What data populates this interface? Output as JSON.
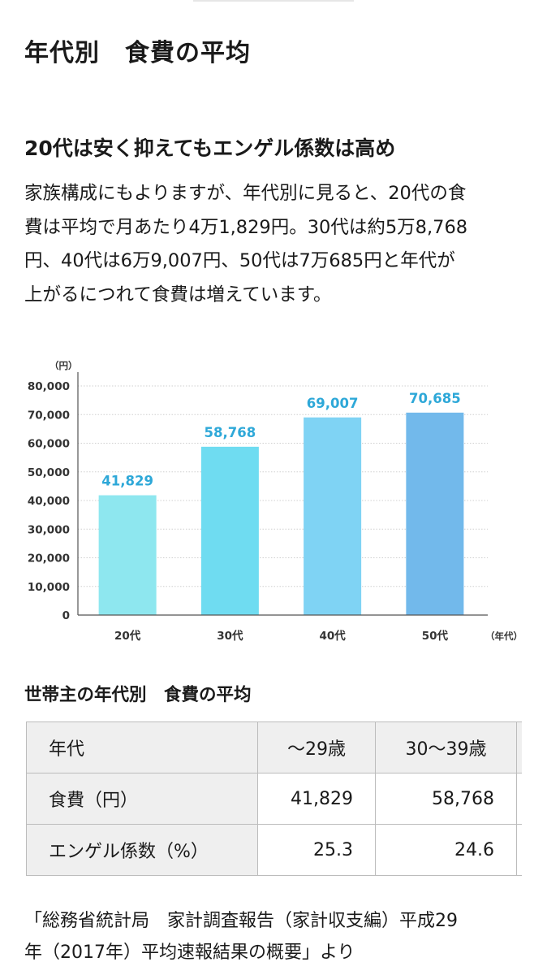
{
  "article": {
    "title": "年代別　食費の平均",
    "subtitle": "20代は安く抑えてもエンゲル係数は高め",
    "paragraph_lines": [
      "家族構成にもよりますが、年代別に見ると、20代の食",
      "費は平均で月あたり4万1,829円。30代は約5万8,768",
      "円、40代は6万9,007円、50代は7万685円と年代が",
      "上がるにつれて食費は増えています。"
    ],
    "table_title": "世帯主の年代別　食費の平均",
    "source_lines": [
      "「総務省統計局　家計調査報告（家計収支編）平成29",
      "年（2017年）平均速報結果の概要」より"
    ]
  },
  "chart_data": {
    "type": "bar",
    "y_unit": "（円）",
    "x_unit": "（年代）",
    "categories": [
      "20代",
      "30代",
      "40代",
      "50代"
    ],
    "values": [
      41829,
      58768,
      69007,
      70685
    ],
    "data_labels": [
      "41,829",
      "58,768",
      "69,007",
      "70,685"
    ],
    "y_ticks": [
      "0",
      "10,000",
      "20,000",
      "30,000",
      "40,000",
      "50,000",
      "60,000",
      "70,000",
      "80,000"
    ],
    "ylim": [
      0,
      80000
    ],
    "bar_colors": [
      "#8ee7ef",
      "#6fdcf1",
      "#7fd3f4",
      "#72b9eb"
    ],
    "label_color": "#2ea8d8",
    "grid": true
  },
  "table": {
    "header": [
      "年代",
      "～29歳",
      "30～39歳"
    ],
    "rows": [
      [
        "食費（円）",
        "41,829",
        "58,768"
      ],
      [
        "エンゲル係数（%）",
        "25.3",
        "24.6"
      ]
    ]
  }
}
